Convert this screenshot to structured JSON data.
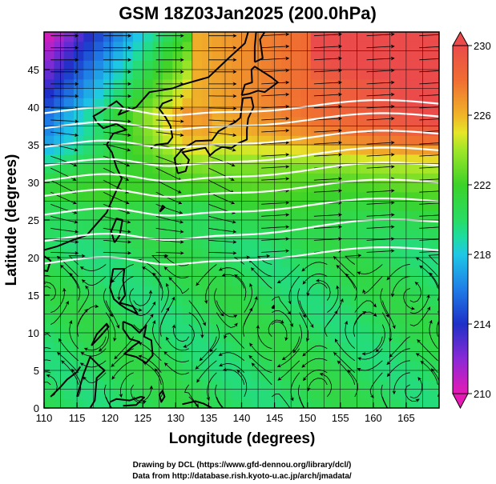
{
  "title": "GSM 18Z03Jan2025 (200.0hPa)",
  "credits": {
    "line1": "Drawing by DCL (https://www.gfd-dennou.org/library/dcl/)",
    "line2": "Data from http://database.rish.kyoto-u.ac.jp/arch/jmadata/"
  },
  "chart_data": {
    "type": "heatmap",
    "title": "GSM 18Z03Jan2025 (200.0hPa)",
    "xlabel": "Longitude (degrees)",
    "ylabel": "Latitude  (degrees)",
    "xlim": [
      110,
      170
    ],
    "ylim": [
      0,
      50
    ],
    "x_ticks": [
      "110",
      "115",
      "120",
      "125",
      "130",
      "135",
      "140",
      "145",
      "150",
      "155",
      "160",
      "165"
    ],
    "y_ticks": [
      "0",
      "5",
      "10",
      "15",
      "20",
      "25",
      "30",
      "35",
      "40",
      "45"
    ],
    "grid": true,
    "field": "temperature",
    "overlays": [
      "coastlines",
      "wind streamlines",
      "geopotential height contours"
    ],
    "colorbar": {
      "min": 210,
      "max": 230,
      "ticks": [
        "210",
        "214",
        "218",
        "222",
        "226",
        "230"
      ],
      "stops": [
        {
          "value": 210,
          "color": "#e61ab4"
        },
        {
          "value": 212,
          "color": "#8a2ad6"
        },
        {
          "value": 214,
          "color": "#1e30c8"
        },
        {
          "value": 216,
          "color": "#1f7de6"
        },
        {
          "value": 218,
          "color": "#1ec8e6"
        },
        {
          "value": 219,
          "color": "#1edca0"
        },
        {
          "value": 220,
          "color": "#28dc64"
        },
        {
          "value": 222,
          "color": "#3cd228"
        },
        {
          "value": 224,
          "color": "#a0e628"
        },
        {
          "value": 225,
          "color": "#e6e628"
        },
        {
          "value": 226,
          "color": "#f0b428"
        },
        {
          "value": 228,
          "color": "#f06e32"
        },
        {
          "value": 230,
          "color": "#eb4b4b"
        }
      ]
    },
    "contours": [
      {
        "name": "height",
        "lat_west": 39.5,
        "lat_east": 40.5
      },
      {
        "name": "height",
        "lat_west": 37.5,
        "lat_east": 38.8
      },
      {
        "name": "height",
        "lat_west": 35.0,
        "lat_east": 36.5
      },
      {
        "name": "height",
        "lat_west": 32.5,
        "lat_east": 34.3
      },
      {
        "name": "height",
        "lat_west": 30.5,
        "lat_east": 32.3
      },
      {
        "name": "height",
        "lat_west": 28.5,
        "lat_east": 30.0
      },
      {
        "name": "height",
        "lat_west": 26.0,
        "lat_east": 27.5
      },
      {
        "name": "height",
        "lat_west": 22.5,
        "lat_east": 24.8
      },
      {
        "name": "height",
        "lat_west": 19.5,
        "lat_east": 21.0
      }
    ]
  }
}
